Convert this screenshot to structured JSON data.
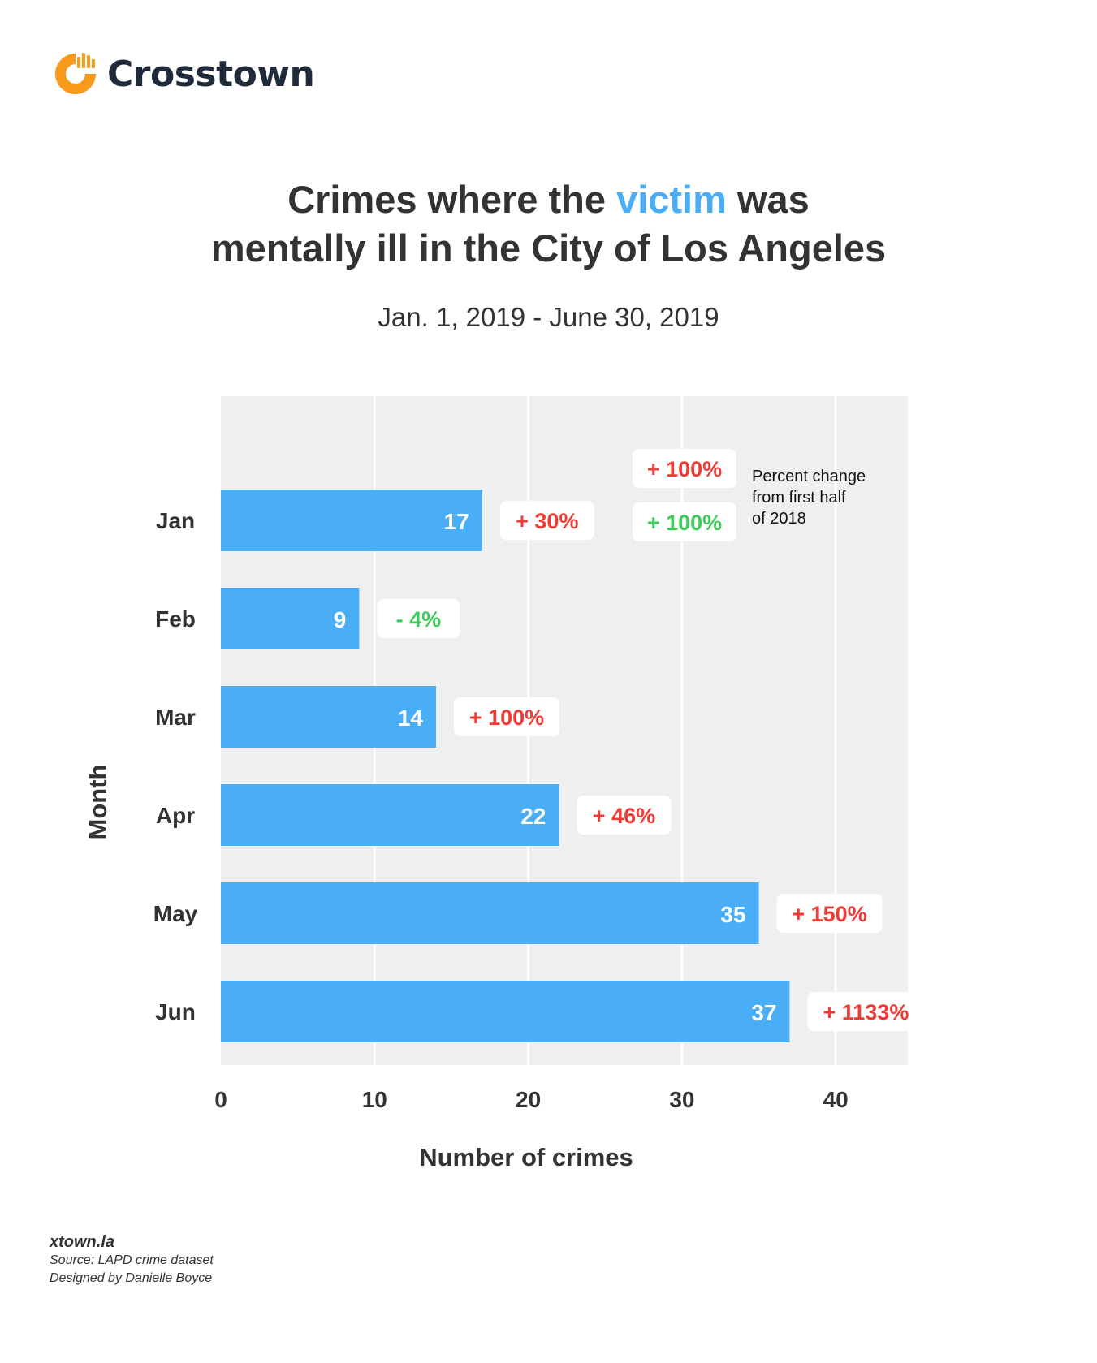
{
  "brand": {
    "name": "Crosstown",
    "icon": "crosstown-logo-icon",
    "accent": "#f89b1c"
  },
  "title": {
    "line1_pre": "Crimes where the ",
    "line1_highlight": "victim",
    "line1_post": " was",
    "line2": "mentally ill in the City of Los Angeles"
  },
  "subtitle": "Jan. 1, 2019 - June 30, 2019",
  "chart_data": {
    "type": "bar",
    "orientation": "horizontal",
    "categories": [
      "Jan",
      "Feb",
      "Mar",
      "Apr",
      "May",
      "Jun"
    ],
    "values": [
      17,
      9,
      14,
      22,
      35,
      37
    ],
    "value_labels": [
      "17",
      "9",
      "14",
      "22",
      "35",
      "37"
    ],
    "percent_change": [
      "+ 30%",
      "- 4%",
      "+ 100%",
      "+ 46%",
      "+ 150%",
      "+ 1133%"
    ],
    "percent_change_direction": [
      "up",
      "down",
      "up",
      "up",
      "up",
      "up"
    ],
    "xlabel": "Number of crimes",
    "ylabel": "Month",
    "xlim": [
      0,
      45
    ],
    "xticks": [
      0,
      10,
      20,
      30,
      40
    ],
    "grid": true,
    "legend": {
      "placement": "top-right",
      "increase_label": "+ 100%",
      "decrease_label": "+ 100%",
      "text": [
        "Percent change",
        "from first half",
        "of 2018"
      ]
    },
    "colors": {
      "bar": "#4aaef6",
      "increase": "#ef3b36",
      "decrease": "#3ecb5b",
      "plot_bg": "#efefef",
      "grid": "#ffffff"
    }
  },
  "footer": {
    "site": "xtown.la",
    "source": "Source: LAPD crime dataset",
    "credit": "Designed by Danielle Boyce"
  }
}
